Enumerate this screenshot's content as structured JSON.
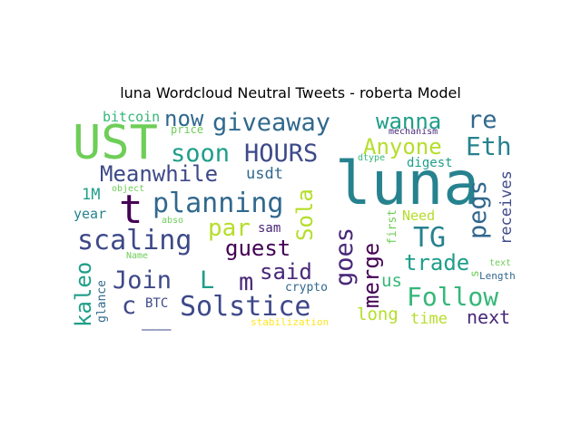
{
  "title": "luna Wordcloud Neutral Tweets - roberta Model",
  "words": {
    "luna": "luna",
    "UST": "UST",
    "giveaway": "giveaway",
    "wanna": "wanna",
    "re": "re",
    "now": "now",
    "bitcoin": "bitcoin",
    "price": "price",
    "mechanism": "mechanism",
    "soon": "soon",
    "HOURS": "HOURS",
    "Anyone": "Anyone",
    "Eth": "Eth",
    "dtype": "dtype",
    "digest": "digest",
    "Meanwhile": "Meanwhile",
    "usdt": "usdt",
    "M1": "1M",
    "object": "object",
    "t": "t",
    "planning": "planning",
    "Sola": "Sola",
    "pegs": "pegs",
    "receives": "receives",
    "year": "year",
    "par": "par",
    "Need": "Need",
    "first": "first",
    "abso": "abso",
    "scaling": "scaling",
    "sam": "sam",
    "goes": "goes",
    "merge": "merge",
    "TG": "TG",
    "guest": "guest",
    "Name": "Name",
    "trade": "trade",
    "text": "text",
    "kaleo": "kaleo",
    "Join": "Join",
    "L": "L",
    "m": "m",
    "said": "said",
    "s": "s",
    "Length": "Length",
    "glance": "glance",
    "crypto": "crypto",
    "us": "us",
    "Follow": "Follow",
    "c": "c",
    "BTC": "BTC",
    "Solstice": "Solstice",
    "dash": "__",
    "long": "long",
    "time": "time",
    "next": "next",
    "stabilization": "stabilization"
  },
  "colors": {
    "dark_purple": "#440154",
    "indigo": "#482878",
    "blue": "#3e4989",
    "slate": "#31688e",
    "teal": "#26828e",
    "green": "#1f9e89",
    "sea": "#35b779",
    "lime": "#6ece58",
    "yellowgreen": "#b5de2b",
    "yellow": "#fde725"
  }
}
